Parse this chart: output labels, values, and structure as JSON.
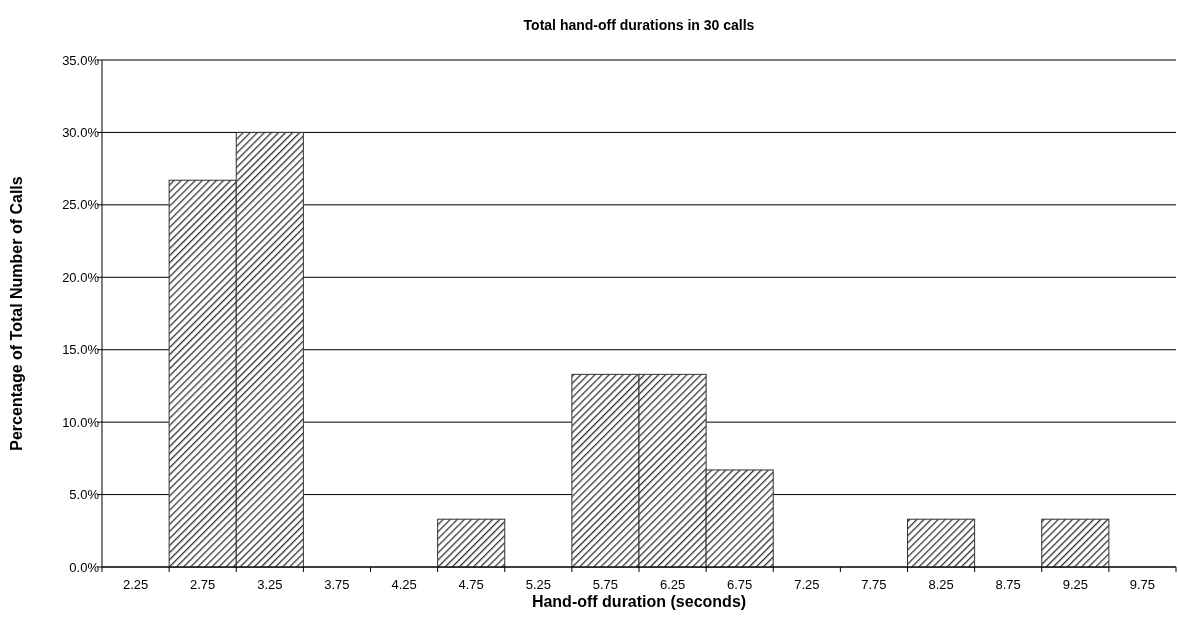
{
  "chart_data": {
    "type": "bar",
    "title": "Total hand-off durations in 30 calls",
    "xlabel": "Hand-off duration (seconds)",
    "ylabel": "Percentage of Total Number of Calls",
    "categories": [
      "2.25",
      "2.75",
      "3.25",
      "3.75",
      "4.25",
      "4.75",
      "5.25",
      "5.75",
      "6.25",
      "6.75",
      "7.25",
      "7.75",
      "8.25",
      "8.75",
      "9.25",
      "9.75"
    ],
    "values": [
      0,
      26.7,
      30,
      0,
      0,
      3.3,
      0,
      13.3,
      13.3,
      6.7,
      0,
      0,
      3.3,
      0,
      3.3,
      0
    ],
    "color": "#333333",
    "ylim": [
      0,
      35
    ],
    "yticks": [
      {
        "value": 0,
        "label": "0.0%"
      },
      {
        "value": 5,
        "label": "5.0%"
      },
      {
        "value": 10,
        "label": "10.0%"
      },
      {
        "value": 15,
        "label": "15.0%"
      },
      {
        "value": 20,
        "label": "20.0%"
      },
      {
        "value": 25,
        "label": "25.0%"
      },
      {
        "value": 30,
        "label": "30.0%"
      },
      {
        "value": 35,
        "label": "35.0%"
      }
    ],
    "grid": "y"
  }
}
